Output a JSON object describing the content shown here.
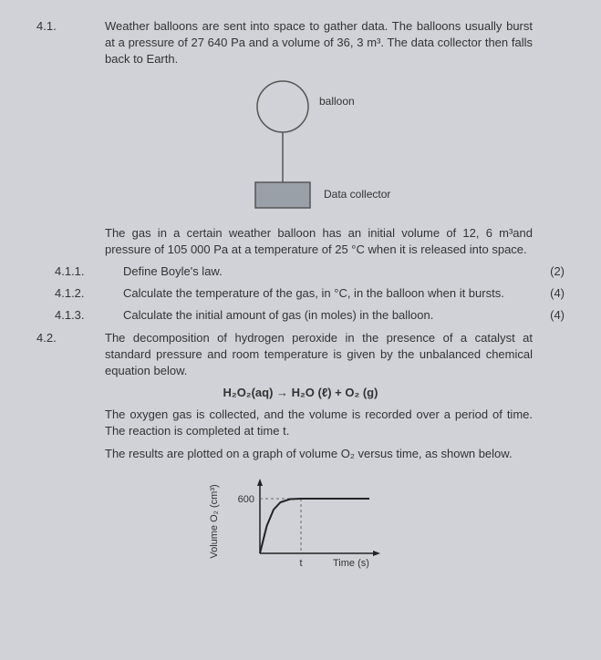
{
  "q41": {
    "num": "4.1.",
    "intro": "Weather balloons are sent into space to gather data. The balloons usually burst at a pressure of 27 640 Pa and a volume of 36, 3 m³. The data collector then falls back to Earth.",
    "diagram": {
      "balloon_label": "balloon",
      "collector_label": "Data collector",
      "balloon_stroke": "#555555",
      "balloon_fill": "#d0d2d8",
      "line_color": "#555555",
      "collector_fill": "#9aa0a8",
      "collector_stroke": "#555555"
    },
    "mid": "The gas in a certain weather balloon has an initial volume of 12, 6 m³and pressure of 105 000 Pa at a temperature of 25 °C when it is released into space.",
    "sub1": {
      "num": "4.1.1.",
      "text": "Define Boyle's law.",
      "marks": "(2)"
    },
    "sub2": {
      "num": "4.1.2.",
      "text": "Calculate the temperature of the gas, in °C, in the balloon when it bursts.",
      "marks": "(4)"
    },
    "sub3": {
      "num": "4.1.3.",
      "text": "Calculate the initial amount of gas (in moles) in the balloon.",
      "marks": "(4)"
    }
  },
  "q42": {
    "num": "4.2.",
    "intro": "The decomposition of hydrogen peroxide in the presence of a catalyst at standard pressure and room temperature is given by the unbalanced chemical equation below.",
    "equation": "H₂O₂(aq) → H₂O (ℓ) + O₂ (g)",
    "p2": "The oxygen gas is collected, and the volume is recorded over a period of time. The reaction is completed at time t.",
    "p3": "The results are plotted on a graph of volume O₂ versus time, as shown below.",
    "chart": {
      "type": "line",
      "ylabel": "Volume O₂ (cm³)",
      "xlabel": "Time (s)",
      "ytick_label": "600",
      "xtick_label": "t",
      "axis_color": "#222222",
      "curve_color": "#222222",
      "dash_color": "#666666",
      "bg": "#d0d2d8",
      "points": [
        [
          0,
          0
        ],
        [
          5,
          300
        ],
        [
          10,
          480
        ],
        [
          15,
          560
        ],
        [
          22,
          595
        ],
        [
          30,
          600
        ],
        [
          80,
          600
        ]
      ],
      "ylim": [
        0,
        700
      ],
      "xlim": [
        0,
        80
      ],
      "plateau_y": 600,
      "t_x": 30
    }
  }
}
